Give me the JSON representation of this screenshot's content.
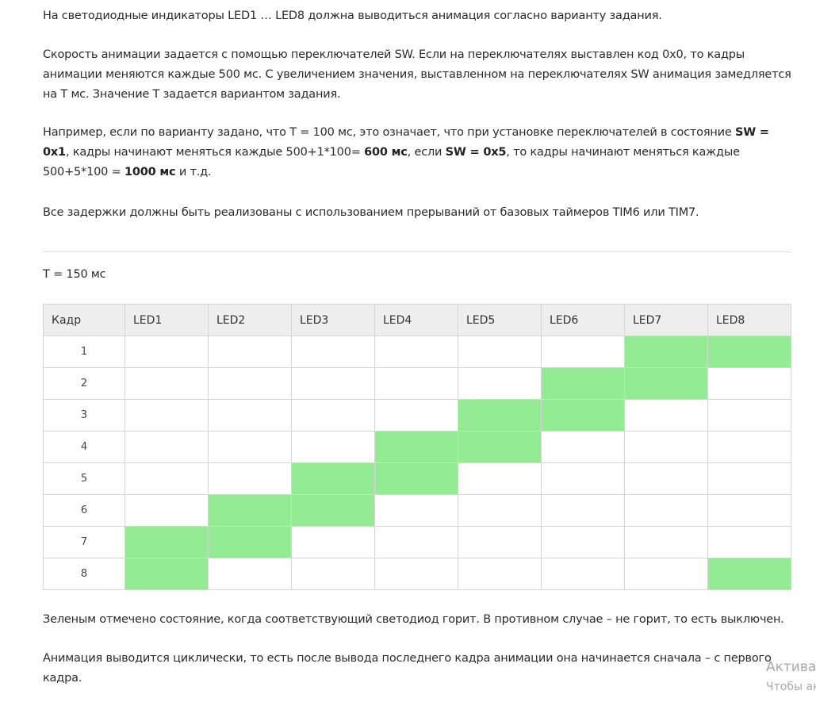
{
  "paragraphs": {
    "intro": "На светодиодные индикаторы LED1 … LED8 должна выводиться анимация согласно варианту задания.",
    "speed": "Скорость анимации задается с помощью переключателей SW. Если на переключателях выставлен код 0х0, то кадры анимации меняются каждые 500 мс. С увеличением значения, выставленном на переключателях SW анимация замедляется на T мс. Значение T задается вариантом задания.",
    "example": {
      "t1": "Например, если по варианту задано, что T = 100 мс, это означает, что при установке переключателей в состояние ",
      "b1": "SW = 0x1",
      "t2": ", кадры начинают меняться каждые 500+1*100= ",
      "b2": "600 мс",
      "t3": ", если ",
      "b3": "SW = 0x5",
      "t4": ", то кадры начинают меняться каждые 500+5*100 = ",
      "b4": "1000 мс",
      "t5": " и т.д."
    },
    "timers": "Все задержки должны быть реализованы с использованием прерываний от базовых таймеров TIM6 или TIM7.",
    "legend": "Зеленым отмечено состояние, когда соответствующий светодиод горит. В противном случае – не горит, то есть выключен.",
    "cyclic": "Анимация выводится циклически, то есть после вывода последнего кадра анимации она начинается сначала – с первого кадра."
  },
  "t_value": "T = 150 мс",
  "table": {
    "headers": [
      "Кадр",
      "LED1",
      "LED2",
      "LED3",
      "LED4",
      "LED5",
      "LED6",
      "LED7",
      "LED8"
    ],
    "rows": [
      {
        "frame": "1",
        "on": [
          false,
          false,
          false,
          false,
          false,
          false,
          true,
          true
        ]
      },
      {
        "frame": "2",
        "on": [
          false,
          false,
          false,
          false,
          false,
          true,
          true,
          false
        ]
      },
      {
        "frame": "3",
        "on": [
          false,
          false,
          false,
          false,
          true,
          true,
          false,
          false
        ]
      },
      {
        "frame": "4",
        "on": [
          false,
          false,
          false,
          true,
          true,
          false,
          false,
          false
        ]
      },
      {
        "frame": "5",
        "on": [
          false,
          false,
          true,
          true,
          false,
          false,
          false,
          false
        ]
      },
      {
        "frame": "6",
        "on": [
          false,
          true,
          true,
          false,
          false,
          false,
          false,
          false
        ]
      },
      {
        "frame": "7",
        "on": [
          true,
          true,
          false,
          false,
          false,
          false,
          false,
          false
        ]
      },
      {
        "frame": "8",
        "on": [
          true,
          false,
          false,
          false,
          false,
          false,
          false,
          true
        ]
      }
    ],
    "on_color": "#93eb93"
  },
  "watermark": {
    "line1": "Актива",
    "line2": "Чтобы ак"
  }
}
